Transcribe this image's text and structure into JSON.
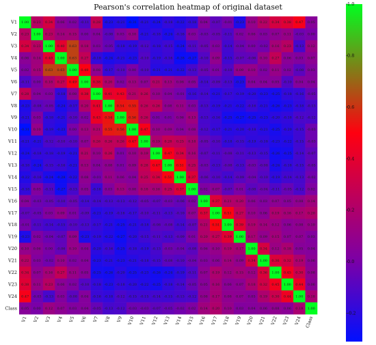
{
  "chart_data": {
    "type": "heatmap",
    "title": "Pearson's correlation heatmap of original dataset",
    "variables": [
      "V1",
      "V2",
      "V3",
      "V4",
      "V5",
      "V6",
      "V7",
      "V8",
      "V9",
      "V10",
      "V11",
      "V12",
      "V13",
      "V14",
      "V15",
      "V16",
      "V17",
      "V18",
      "V19",
      "V20",
      "V21",
      "V22",
      "V23",
      "V24",
      "Class"
    ],
    "matrix": [
      [
        1.0,
        0.23,
        0.34,
        0.06,
        0.02,
        -0.11,
        0.28,
        -0.23,
        -0.21,
        -0.31,
        -0.21,
        -0.24,
        -0.18,
        -0.22,
        -0.18,
        0.04,
        -0.07,
        -0.01,
        -0.23,
        0.1,
        0.22,
        0.34,
        0.38,
        0.47,
        0.05
      ],
      [
        0.23,
        1.0,
        0.23,
        0.14,
        0.15,
        0.0,
        0.04,
        -0.08,
        0.03,
        0.1,
        -0.21,
        -0.18,
        -0.24,
        -0.16,
        0.03,
        -0.03,
        -0.05,
        -0.11,
        0.02,
        0.06,
        0.03,
        0.07,
        0.11,
        -0.03,
        0.0
      ],
      [
        0.34,
        0.23,
        1.0,
        0.4,
        0.63,
        0.18,
        0.03,
        -0.05,
        -0.18,
        -0.19,
        -0.12,
        -0.18,
        -0.15,
        -0.24,
        -0.11,
        -0.05,
        0.03,
        -0.14,
        -0.04,
        0.0,
        -0.02,
        0.16,
        0.23,
        -0.13,
        0.12
      ],
      [
        0.06,
        0.14,
        0.4,
        1.0,
        0.63,
        0.27,
        -0.18,
        -0.24,
        -0.21,
        -0.23,
        -0.1,
        -0.19,
        -0.16,
        -0.28,
        -0.27,
        -0.1,
        0.09,
        -0.15,
        -0.07,
        -0.06,
        0.1,
        0.27,
        0.06,
        0.03,
        0.07
      ],
      [
        0.02,
        0.15,
        0.63,
        0.63,
        1.0,
        0.49,
        0.08,
        -0.17,
        -0.1,
        0.0,
        -0.1,
        -0.21,
        -0.21,
        -0.22,
        -0.13,
        -0.05,
        0.01,
        -0.1,
        0.09,
        0.1,
        0.02,
        0.11,
        0.02,
        -0.08,
        0.03
      ],
      [
        -0.11,
        0.0,
        0.18,
        0.27,
        0.49,
        1.0,
        0.38,
        0.2,
        0.02,
        0.13,
        0.07,
        0.21,
        0.13,
        0.08,
        0.05,
        -0.14,
        -0.09,
        -0.13,
        -0.23,
        0.04,
        0.04,
        0.05,
        -0.1,
        0.04,
        0.04
      ],
      [
        0.28,
        0.04,
        0.03,
        -0.18,
        0.08,
        0.38,
        1.0,
        0.41,
        0.43,
        0.21,
        0.26,
        0.1,
        0.04,
        -0.01,
        -0.16,
        -0.14,
        -0.21,
        -0.17,
        -0.19,
        -0.2,
        -0.23,
        -0.25,
        -0.18,
        -0.16,
        -0.05
      ],
      [
        -0.23,
        -0.08,
        -0.05,
        -0.24,
        -0.17,
        0.2,
        0.41,
        1.0,
        0.54,
        0.55,
        0.26,
        0.26,
        0.08,
        0.11,
        0.03,
        -0.13,
        -0.19,
        -0.21,
        -0.22,
        -0.16,
        -0.21,
        -0.26,
        -0.23,
        -0.18,
        -0.13
      ],
      [
        -0.21,
        0.03,
        -0.18,
        -0.21,
        -0.1,
        0.02,
        0.43,
        0.54,
        1.0,
        0.56,
        0.26,
        0.01,
        0.01,
        0.06,
        0.13,
        -0.13,
        -0.16,
        -0.25,
        -0.27,
        -0.25,
        -0.23,
        -0.2,
        -0.18,
        -0.12,
        -0.12
      ],
      [
        -0.31,
        0.1,
        -0.19,
        -0.23,
        0.0,
        0.13,
        0.21,
        0.55,
        0.56,
        1.0,
        0.47,
        0.1,
        0.09,
        0.04,
        0.08,
        -0.12,
        -0.17,
        -0.21,
        -0.2,
        -0.18,
        -0.21,
        -0.25,
        -0.2,
        -0.15,
        -0.03
      ],
      [
        -0.21,
        -0.21,
        -0.12,
        -0.1,
        -0.1,
        0.07,
        0.26,
        0.26,
        0.26,
        0.47,
        1.0,
        0.19,
        0.28,
        0.25,
        0.18,
        -0.05,
        -0.1,
        -0.18,
        -0.15,
        -0.19,
        -0.18,
        -0.23,
        -0.22,
        -0.15,
        -0.03
      ],
      [
        -0.24,
        -0.18,
        -0.18,
        -0.19,
        -0.21,
        0.21,
        0.1,
        0.26,
        0.01,
        0.1,
        0.19,
        1.0,
        0.47,
        0.34,
        0.16,
        -0.07,
        -0.11,
        -0.08,
        -0.11,
        -0.13,
        -0.15,
        -0.26,
        -0.25,
        -0.14,
        -0.07
      ],
      [
        -0.18,
        -0.24,
        -0.15,
        -0.16,
        -0.21,
        0.13,
        0.04,
        0.08,
        0.01,
        0.09,
        0.28,
        0.47,
        1.0,
        0.51,
        0.25,
        -0.03,
        -0.13,
        -0.08,
        -0.13,
        -0.03,
        -0.08,
        -0.24,
        -0.18,
        -0.15,
        -0.05
      ],
      [
        -0.22,
        -0.16,
        -0.24,
        -0.28,
        -0.22,
        0.08,
        -0.01,
        0.11,
        0.06,
        0.04,
        0.25,
        0.34,
        0.51,
        1.0,
        0.37,
        -0.06,
        -0.1,
        -0.14,
        -0.09,
        -0.04,
        -0.1,
        -0.19,
        -0.14,
        -0.13,
        -0.02
      ],
      [
        -0.18,
        0.03,
        -0.11,
        -0.27,
        -0.13,
        0.05,
        -0.16,
        0.03,
        0.13,
        0.08,
        0.18,
        0.16,
        0.25,
        0.37,
        1.0,
        0.02,
        0.07,
        -0.07,
        0.01,
        -0.08,
        -0.04,
        -0.11,
        -0.05,
        -0.12,
        0.02
      ],
      [
        0.04,
        -0.03,
        -0.05,
        -0.1,
        -0.05,
        -0.14,
        -0.14,
        -0.13,
        -0.13,
        -0.12,
        -0.05,
        -0.07,
        -0.03,
        -0.06,
        0.02,
        1.0,
        0.37,
        0.21,
        0.2,
        0.06,
        0.03,
        0.07,
        0.05,
        0.08,
        0.14
      ],
      [
        -0.07,
        -0.05,
        0.03,
        0.09,
        0.01,
        -0.09,
        -0.21,
        -0.19,
        -0.16,
        -0.17,
        -0.1,
        -0.11,
        -0.13,
        -0.1,
        0.07,
        0.37,
        1.0,
        0.51,
        0.27,
        0.1,
        0.06,
        0.19,
        0.16,
        0.17,
        0.2
      ],
      [
        -0.01,
        -0.11,
        -0.14,
        -0.15,
        -0.1,
        -0.13,
        -0.17,
        -0.21,
        -0.25,
        -0.21,
        -0.18,
        -0.08,
        -0.08,
        -0.14,
        -0.07,
        0.21,
        0.51,
        1.0,
        0.39,
        0.19,
        0.14,
        0.12,
        0.06,
        0.08,
        0.1
      ],
      [
        -0.23,
        0.02,
        -0.04,
        -0.07,
        0.09,
        -0.23,
        -0.19,
        -0.22,
        -0.27,
        -0.2,
        -0.15,
        -0.11,
        -0.13,
        -0.09,
        0.01,
        0.2,
        0.27,
        0.39,
        1.0,
        0.17,
        0.09,
        0.15,
        0.07,
        0.07,
        0.03
      ],
      [
        0.1,
        0.06,
        0.0,
        -0.06,
        0.1,
        0.04,
        -0.2,
        -0.16,
        -0.25,
        -0.18,
        -0.19,
        -0.13,
        -0.03,
        -0.04,
        -0.08,
        0.06,
        0.1,
        0.19,
        0.17,
        1.0,
        0.34,
        0.12,
        0.18,
        0.05,
        0.04
      ],
      [
        0.22,
        0.03,
        -0.02,
        0.1,
        0.02,
        0.04,
        -0.23,
        -0.21,
        -0.23,
        -0.21,
        -0.18,
        -0.15,
        -0.08,
        -0.1,
        -0.04,
        0.03,
        0.06,
        0.14,
        0.09,
        0.34,
        1.0,
        0.36,
        0.32,
        0.19,
        0.06
      ],
      [
        0.34,
        0.07,
        0.16,
        0.27,
        0.11,
        0.05,
        -0.25,
        -0.26,
        -0.2,
        -0.25,
        -0.23,
        -0.26,
        -0.24,
        -0.19,
        -0.11,
        0.07,
        0.19,
        0.12,
        0.15,
        0.12,
        0.36,
        1.0,
        0.45,
        0.3,
        0.08
      ],
      [
        0.38,
        0.11,
        0.23,
        0.06,
        0.02,
        -0.1,
        -0.18,
        -0.23,
        -0.18,
        -0.2,
        -0.22,
        -0.25,
        -0.18,
        -0.14,
        -0.05,
        0.05,
        0.16,
        0.06,
        0.07,
        0.18,
        0.32,
        0.45,
        1.0,
        0.44,
        0.06
      ],
      [
        0.47,
        -0.03,
        -0.13,
        0.03,
        -0.08,
        0.04,
        -0.16,
        -0.18,
        -0.12,
        -0.15,
        -0.15,
        -0.14,
        -0.15,
        -0.13,
        -0.12,
        0.08,
        0.17,
        0.08,
        0.07,
        0.05,
        0.19,
        0.3,
        0.44,
        1.0,
        0.18
      ],
      [
        0.05,
        0.0,
        0.12,
        0.07,
        0.03,
        0.04,
        -0.05,
        -0.13,
        -0.12,
        -0.03,
        -0.03,
        -0.07,
        -0.05,
        -0.02,
        0.02,
        0.14,
        0.2,
        0.1,
        0.03,
        0.04,
        0.06,
        0.08,
        0.06,
        0.18,
        1.0
      ]
    ],
    "colorbar": {
      "ticks": [
        1.0,
        0.8,
        0.6,
        0.4,
        0.2,
        0.0,
        -0.2
      ],
      "tick_labels": [
        "1.0",
        "0.8",
        "0.6",
        "0.4",
        "0.2",
        "0.0",
        "-0.2"
      ],
      "range": [
        -0.31,
        1.0
      ],
      "colors": [
        "#0010ff",
        "#7a00a8",
        "#ff0010",
        "#00ff20"
      ],
      "color_stops": [
        -0.31,
        0.0,
        0.5,
        1.0
      ]
    },
    "cell_text_color": "#222222"
  }
}
